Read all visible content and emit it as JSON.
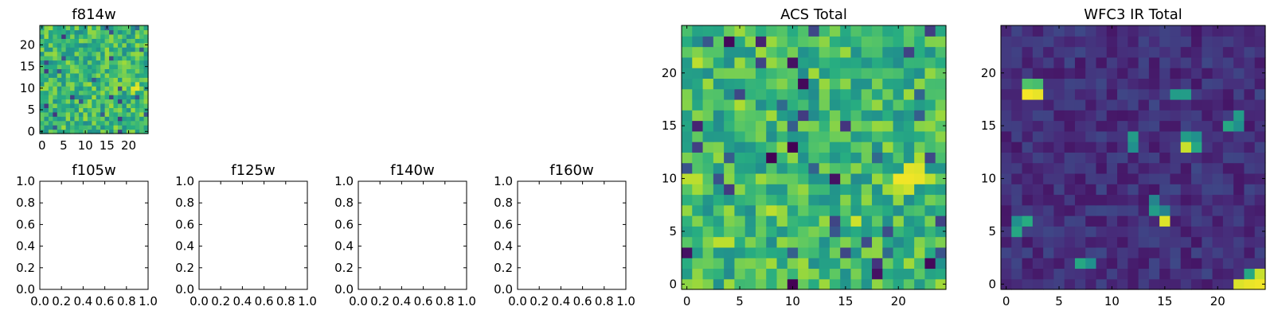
{
  "colormap": [
    "#440154",
    "#472c7a",
    "#3b518b",
    "#2c718e",
    "#21908d",
    "#27ad81",
    "#5cc863",
    "#aadc32",
    "#fde725"
  ],
  "chart_data": [
    {
      "id": "f814w",
      "type": "heatmap",
      "title": "f814w",
      "xlim": [
        -0.5,
        24.5
      ],
      "ylim": [
        -0.5,
        24.5
      ],
      "xticks": [
        0,
        5,
        10,
        15,
        20
      ],
      "yticks": [
        0,
        5,
        10,
        15,
        20
      ],
      "xtick_labels": [
        "0",
        "5",
        "10",
        "15",
        "20"
      ],
      "ytick_labels": [
        "0",
        "5",
        "10",
        "15",
        "20"
      ],
      "grid_size": 25,
      "origin": "lower",
      "seed": 11,
      "mode": "acs",
      "hotspots": [
        {
          "x": 22,
          "y": 10,
          "v": 0.97
        },
        {
          "x": 21,
          "y": 10,
          "v": 0.95
        },
        {
          "x": 22,
          "y": 11,
          "v": 0.93
        },
        {
          "x": 21,
          "y": 9,
          "v": 0.9
        }
      ]
    },
    {
      "id": "f105w",
      "type": "heatmap",
      "title": "f105w",
      "xlim": [
        0,
        1
      ],
      "ylim": [
        0,
        1
      ],
      "xticks": [
        0,
        0.2,
        0.4,
        0.6,
        0.8,
        1.0
      ],
      "yticks": [
        0,
        0.2,
        0.4,
        0.6,
        0.8,
        1.0
      ],
      "xtick_labels": [
        "0.0",
        "0.2",
        "0.4",
        "0.6",
        "0.8",
        "1.0"
      ],
      "ytick_labels": [
        "0.0",
        "0.2",
        "0.4",
        "0.6",
        "0.8",
        "1.0"
      ],
      "empty": true
    },
    {
      "id": "f125w",
      "type": "heatmap",
      "title": "f125w",
      "xlim": [
        0,
        1
      ],
      "ylim": [
        0,
        1
      ],
      "xticks": [
        0,
        0.2,
        0.4,
        0.6,
        0.8,
        1.0
      ],
      "yticks": [
        0,
        0.2,
        0.4,
        0.6,
        0.8,
        1.0
      ],
      "xtick_labels": [
        "0.0",
        "0.2",
        "0.4",
        "0.6",
        "0.8",
        "1.0"
      ],
      "ytick_labels": [
        "0.0",
        "0.2",
        "0.4",
        "0.6",
        "0.8",
        "1.0"
      ],
      "empty": true
    },
    {
      "id": "f140w",
      "type": "heatmap",
      "title": "f140w",
      "xlim": [
        0,
        1
      ],
      "ylim": [
        0,
        1
      ],
      "xticks": [
        0,
        0.2,
        0.4,
        0.6,
        0.8,
        1.0
      ],
      "yticks": [
        0,
        0.2,
        0.4,
        0.6,
        0.8,
        1.0
      ],
      "xtick_labels": [
        "0.0",
        "0.2",
        "0.4",
        "0.6",
        "0.8",
        "1.0"
      ],
      "ytick_labels": [
        "0.0",
        "0.2",
        "0.4",
        "0.6",
        "0.8",
        "1.0"
      ],
      "empty": true
    },
    {
      "id": "f160w",
      "type": "heatmap",
      "title": "f160w",
      "xlim": [
        0,
        1
      ],
      "ylim": [
        0,
        1
      ],
      "xticks": [
        0,
        0.2,
        0.4,
        0.6,
        0.8,
        1.0
      ],
      "yticks": [
        0,
        0.2,
        0.4,
        0.6,
        0.8,
        1.0
      ],
      "xtick_labels": [
        "0.0",
        "0.2",
        "0.4",
        "0.6",
        "0.8",
        "1.0"
      ],
      "ytick_labels": [
        "0.0",
        "0.2",
        "0.4",
        "0.6",
        "0.8",
        "1.0"
      ],
      "empty": true
    },
    {
      "id": "acs-total",
      "type": "heatmap",
      "title": "ACS Total",
      "xlim": [
        -0.5,
        24.5
      ],
      "ylim": [
        -0.5,
        24.5
      ],
      "xticks": [
        0,
        5,
        10,
        15,
        20
      ],
      "yticks": [
        0,
        5,
        10,
        15,
        20
      ],
      "xtick_labels": [
        "0",
        "5",
        "10",
        "15",
        "20"
      ],
      "ytick_labels": [
        "0",
        "5",
        "10",
        "15",
        "20"
      ],
      "grid_size": 25,
      "origin": "lower",
      "seed": 7,
      "mode": "acs",
      "hotspots": [
        {
          "x": 20,
          "y": 10,
          "v": 0.98
        },
        {
          "x": 21,
          "y": 10,
          "v": 0.98
        },
        {
          "x": 22,
          "y": 10,
          "v": 0.97
        },
        {
          "x": 21,
          "y": 11,
          "v": 0.96
        },
        {
          "x": 22,
          "y": 11,
          "v": 0.95
        },
        {
          "x": 21,
          "y": 9,
          "v": 0.93
        },
        {
          "x": 20,
          "y": 9,
          "v": 0.9
        },
        {
          "x": 22,
          "y": 12,
          "v": 0.88
        },
        {
          "x": 23,
          "y": 10,
          "v": 0.9
        },
        {
          "x": 0,
          "y": 10,
          "v": 0.9
        },
        {
          "x": 1,
          "y": 10,
          "v": 0.9
        },
        {
          "x": 16,
          "y": 6,
          "v": 0.93
        },
        {
          "x": 3,
          "y": 4,
          "v": 0.9
        },
        {
          "x": 4,
          "y": 4,
          "v": 0.9
        },
        {
          "x": 5,
          "y": 17,
          "v": 0.88
        },
        {
          "x": 8,
          "y": 7,
          "v": 0.9
        },
        {
          "x": 1,
          "y": 21,
          "v": 0.9
        },
        {
          "x": 1,
          "y": 0,
          "v": 0.85
        },
        {
          "x": 10,
          "y": 0,
          "v": 0.0
        },
        {
          "x": 10,
          "y": 13,
          "v": 0.0
        },
        {
          "x": 8,
          "y": 12,
          "v": 0.0
        },
        {
          "x": 14,
          "y": 10,
          "v": 0.05
        },
        {
          "x": 18,
          "y": 1,
          "v": 0.05
        },
        {
          "x": 23,
          "y": 2,
          "v": 0.02
        },
        {
          "x": 10,
          "y": 21,
          "v": 0.05
        },
        {
          "x": 11,
          "y": 19,
          "v": 0.02
        },
        {
          "x": 4,
          "y": 23,
          "v": 0.02
        },
        {
          "x": 7,
          "y": 23,
          "v": 0.1
        },
        {
          "x": 1,
          "y": 15,
          "v": 0.1
        },
        {
          "x": 0,
          "y": 3,
          "v": 0.05
        }
      ]
    },
    {
      "id": "wfc3-ir-total",
      "type": "heatmap",
      "title": "WFC3 IR Total",
      "xlim": [
        -0.5,
        24.5
      ],
      "ylim": [
        -0.5,
        24.5
      ],
      "xticks": [
        0,
        5,
        10,
        15,
        20
      ],
      "yticks": [
        0,
        5,
        10,
        15,
        20
      ],
      "xtick_labels": [
        "0",
        "5",
        "10",
        "15",
        "20"
      ],
      "ytick_labels": [
        "0",
        "5",
        "10",
        "15",
        "20"
      ],
      "grid_size": 25,
      "origin": "lower",
      "seed": 23,
      "mode": "ir",
      "hotspots": [
        {
          "x": 2,
          "y": 18,
          "v": 0.99
        },
        {
          "x": 3,
          "y": 18,
          "v": 0.97
        },
        {
          "x": 2,
          "y": 19,
          "v": 0.72
        },
        {
          "x": 3,
          "y": 19,
          "v": 0.7
        },
        {
          "x": 23,
          "y": 0,
          "v": 0.97
        },
        {
          "x": 24,
          "y": 0,
          "v": 0.98
        },
        {
          "x": 22,
          "y": 0,
          "v": 0.95
        },
        {
          "x": 24,
          "y": 1,
          "v": 0.92
        },
        {
          "x": 23,
          "y": 1,
          "v": 0.6
        },
        {
          "x": 17,
          "y": 13,
          "v": 0.92
        },
        {
          "x": 18,
          "y": 13,
          "v": 0.6
        },
        {
          "x": 17,
          "y": 14,
          "v": 0.55
        },
        {
          "x": 18,
          "y": 14,
          "v": 0.5
        },
        {
          "x": 15,
          "y": 6,
          "v": 0.95
        },
        {
          "x": 14,
          "y": 7,
          "v": 0.55
        },
        {
          "x": 15,
          "y": 7,
          "v": 0.45
        },
        {
          "x": 12,
          "y": 14,
          "v": 0.55
        },
        {
          "x": 12,
          "y": 13,
          "v": 0.5
        },
        {
          "x": 16,
          "y": 18,
          "v": 0.55
        },
        {
          "x": 17,
          "y": 18,
          "v": 0.55
        },
        {
          "x": 21,
          "y": 15,
          "v": 0.6
        },
        {
          "x": 22,
          "y": 16,
          "v": 0.55
        },
        {
          "x": 22,
          "y": 15,
          "v": 0.5
        },
        {
          "x": 1,
          "y": 5,
          "v": 0.6
        },
        {
          "x": 2,
          "y": 6,
          "v": 0.62
        },
        {
          "x": 1,
          "y": 6,
          "v": 0.5
        },
        {
          "x": 7,
          "y": 2,
          "v": 0.6
        },
        {
          "x": 8,
          "y": 2,
          "v": 0.5
        },
        {
          "x": 14,
          "y": 8,
          "v": 0.45
        }
      ]
    }
  ]
}
